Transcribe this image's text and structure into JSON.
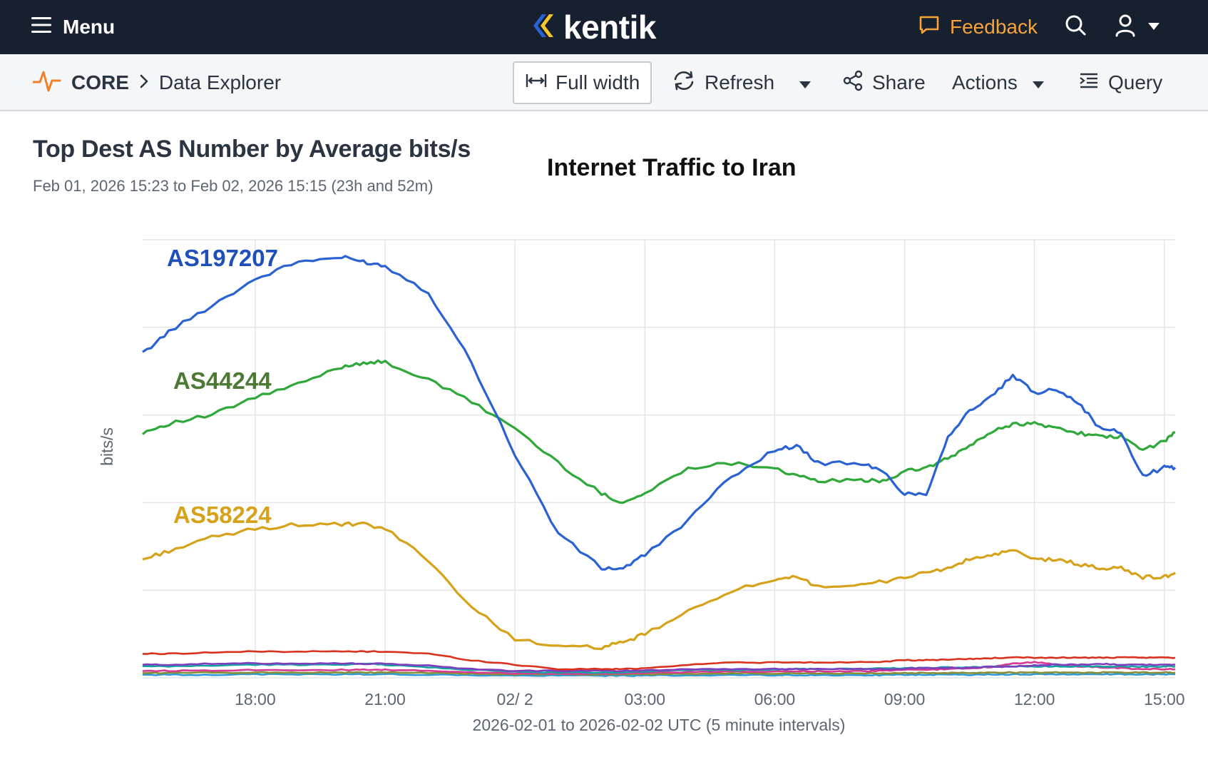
{
  "topbar": {
    "menu_label": "Menu",
    "logo_text": "kentik",
    "feedback_label": "Feedback"
  },
  "breadcrumb": {
    "root": "CORE",
    "page": "Data Explorer"
  },
  "toolbar": {
    "full_width_label": "Full width",
    "refresh_label": "Refresh",
    "share_label": "Share",
    "actions_label": "Actions",
    "query_label": "Query"
  },
  "panel": {
    "title": "Top Dest AS Number by Average bits/s",
    "time_range": "Feb 01, 2026 15:23 to Feb 02, 2026 15:15 (23h and 52m)"
  },
  "colors": {
    "topbar_bg": "#16202e",
    "accent_orange": "#f6a43a",
    "as197207": "#2a62d4",
    "as44244": "#2fa83a",
    "as58224": "#d6a21a"
  },
  "chart_data": {
    "type": "line",
    "title": "Internet Traffic to Iran",
    "xlabel": "2026-02-01 to 2026-02-02 UTC (5 minute intervals)",
    "ylabel": "bits/s",
    "x_tick_labels": [
      "18:00",
      "21:00",
      "02/ 2",
      "03:00",
      "06:00",
      "09:00",
      "12:00",
      "15:00"
    ],
    "x_tick_hours": [
      18,
      21,
      24,
      27,
      30,
      33,
      36,
      39
    ],
    "xlim_hours": [
      15.4,
      39.25
    ],
    "ylim": [
      0,
      100
    ],
    "y_gridlines": [
      0,
      20,
      40,
      60,
      80,
      100
    ],
    "x": [
      15.4,
      16,
      17,
      18,
      19,
      20,
      20.5,
      21,
      22,
      23,
      24,
      25,
      26,
      26.5,
      27,
      28,
      29,
      30,
      30.5,
      31,
      32,
      32.5,
      33,
      33.5,
      34,
      34.5,
      35,
      35.5,
      36,
      36.5,
      37,
      37.5,
      38,
      38.5,
      39,
      39.25
    ],
    "series": [
      {
        "name": "AS197207",
        "label": "AS197207",
        "color": "#2a62d4",
        "values": [
          74,
          79,
          85,
          91,
          95,
          96,
          95,
          94,
          88,
          72,
          51,
          33,
          25,
          25,
          28,
          36,
          46,
          52,
          53,
          49,
          49,
          47,
          42,
          42,
          55,
          61,
          64,
          69,
          65,
          66,
          63,
          57,
          56,
          46,
          48,
          48
        ]
      },
      {
        "name": "AS44244",
        "label": "AS44244",
        "color": "#2fa83a",
        "values": [
          56,
          58,
          60,
          64,
          67,
          71,
          72,
          72,
          68,
          63,
          57,
          49,
          42,
          40,
          42,
          48,
          49,
          48,
          46,
          45,
          45,
          45,
          47,
          48,
          50,
          53,
          56,
          58,
          58,
          57,
          56,
          55,
          55,
          52,
          54,
          56
        ]
      },
      {
        "name": "AS58224",
        "label": "AS58224",
        "color": "#d6a21a",
        "values": [
          27,
          29,
          32,
          34,
          35,
          35,
          35,
          34,
          27,
          16,
          9,
          7,
          7,
          8,
          10,
          15,
          20,
          22,
          23,
          21,
          21,
          22,
          23,
          24,
          25,
          27,
          28,
          29,
          27,
          27,
          26,
          25,
          25,
          23,
          23,
          24
        ]
      },
      {
        "name": "other-1",
        "label": "",
        "color": "#d9321f",
        "values": [
          5.5,
          5.5,
          5.8,
          6,
          6,
          6,
          6,
          6,
          5.5,
          4,
          3,
          2,
          2,
          2,
          2.2,
          3,
          3.5,
          3.5,
          3.5,
          3.5,
          3.6,
          3.7,
          4,
          4,
          4.2,
          4.3,
          4.5,
          4.6,
          4.6,
          4.6,
          4.6,
          4.6,
          4.6,
          4.6,
          4.6,
          4.6
        ]
      },
      {
        "name": "other-2",
        "label": "",
        "color": "#7e3fbf",
        "values": [
          3,
          3,
          3.2,
          3.3,
          3.3,
          3.3,
          3.2,
          3.2,
          2.8,
          2,
          1.6,
          1.6,
          1.6,
          1.6,
          1.7,
          2,
          2,
          2,
          2,
          2,
          2,
          2,
          2.1,
          2.2,
          2.3,
          2.3,
          2.5,
          2.6,
          2.8,
          3,
          3,
          3.2,
          3,
          3,
          3,
          3
        ]
      },
      {
        "name": "other-3",
        "label": "",
        "color": "#17a2a2",
        "values": [
          2.6,
          2.6,
          2.8,
          3,
          3,
          3,
          3.2,
          3,
          2.4,
          1.8,
          1.4,
          1.2,
          1.2,
          1.3,
          1.5,
          1.8,
          1.8,
          1.9,
          2,
          2,
          2,
          2.2,
          2.2,
          2.3,
          2.4,
          2.4,
          2.5,
          2.6,
          2.6,
          2.6,
          2.6,
          2.6,
          2.6,
          2.5,
          2.6,
          2.6
        ]
      },
      {
        "name": "other-4",
        "label": "",
        "color": "#d63a93",
        "values": [
          1.6,
          1.6,
          1.7,
          1.8,
          1.8,
          1.8,
          1.8,
          1.8,
          1.6,
          1.3,
          1,
          1,
          1,
          1,
          1.1,
          1.3,
          1.4,
          1.4,
          1.5,
          1.5,
          1.5,
          1.6,
          1.8,
          1.8,
          2,
          2.2,
          2.5,
          3.2,
          3.6,
          3,
          2.6,
          2.4,
          2.2,
          2,
          2,
          2
        ]
      },
      {
        "name": "other-5",
        "label": "",
        "color": "#8a8f36",
        "values": [
          1.1,
          1.1,
          1.2,
          1.2,
          1.2,
          1.2,
          1.2,
          1.2,
          1.1,
          0.9,
          0.8,
          0.8,
          0.8,
          0.8,
          0.8,
          0.9,
          1,
          1,
          1,
          1,
          1,
          1,
          1.1,
          1.1,
          1.1,
          1.2,
          1.2,
          1.2,
          1.2,
          1.2,
          1.2,
          1.2,
          1.2,
          1.2,
          1.2,
          1.2
        ]
      },
      {
        "name": "other-6",
        "label": "",
        "color": "#2f9bd6",
        "values": [
          0.7,
          0.7,
          0.7,
          0.8,
          0.8,
          0.8,
          0.8,
          0.8,
          0.7,
          0.6,
          0.5,
          0.5,
          0.5,
          0.5,
          0.5,
          0.6,
          0.6,
          0.6,
          0.6,
          0.6,
          0.6,
          0.6,
          0.7,
          0.7,
          0.7,
          0.7,
          0.8,
          0.8,
          0.8,
          0.8,
          0.8,
          0.8,
          0.8,
          0.8,
          0.8,
          0.8
        ]
      }
    ]
  }
}
